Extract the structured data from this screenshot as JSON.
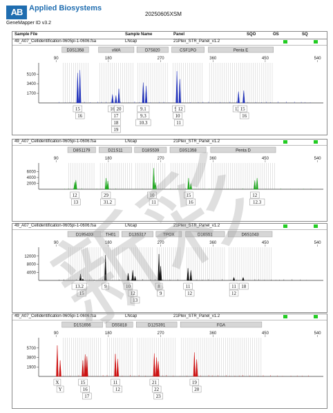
{
  "header": {
    "brand": "Applied Biosystems",
    "software": "GeneMapper ID v3.2",
    "title": "20250605XSM",
    "columns": [
      "Sample File",
      "Sample Name",
      "Panel",
      "SQO",
      "OS",
      "SQ"
    ],
    "status_color": "#22cc22"
  },
  "watermark_text": "新彩",
  "chart_data": [
    {
      "type": "line",
      "sample_file": "49_A07_Cellidentification-0605pi-1-0606.fsa",
      "sample_name": "LNcap",
      "panel": "21Plex_STR_Panel_v1.2",
      "color": "#2233bb",
      "x_range": [
        60,
        550
      ],
      "x_ticks": [
        90,
        180,
        270,
        360,
        450,
        540
      ],
      "ylim": [
        0,
        6600
      ],
      "y_ticks": [
        1700,
        3400,
        5100
      ],
      "y_tick_labels": [
        "1700",
        "3400",
        "5100"
      ],
      "markers": [
        {
          "name": "D3S1358",
          "start": 100,
          "end": 146
        },
        {
          "name": "vWA",
          "start": 163,
          "end": 224
        },
        {
          "name": "D7S820",
          "start": 229,
          "end": 283
        },
        {
          "name": "CSF1PO",
          "start": 289,
          "end": 345
        },
        {
          "name": "Penta E",
          "start": 352,
          "end": 464
        }
      ],
      "peaks": [
        {
          "x": 127,
          "h": 5300
        },
        {
          "x": 131,
          "h": 5800
        },
        {
          "x": 187,
          "h": 1500
        },
        {
          "x": 193,
          "h": 1300
        },
        {
          "x": 198,
          "h": 2500
        },
        {
          "x": 240,
          "h": 3600
        },
        {
          "x": 245,
          "h": 3000
        },
        {
          "x": 298,
          "h": 5600
        },
        {
          "x": 303,
          "h": 4200
        },
        {
          "x": 404,
          "h": 2000
        },
        {
          "x": 413,
          "h": 2200
        }
      ],
      "labels": [
        {
          "x": 127,
          "row": 0,
          "text": "15"
        },
        {
          "x": 131,
          "row": 1,
          "text": "16"
        },
        {
          "x": 187,
          "row": 0,
          "text": "16"
        },
        {
          "x": 193,
          "row": 1,
          "text": "17"
        },
        {
          "x": 193,
          "row": 2,
          "text": "18"
        },
        {
          "x": 193,
          "row": 3,
          "text": "19"
        },
        {
          "x": 198,
          "row": 0,
          "text": "20"
        },
        {
          "x": 240,
          "row": 0,
          "text": "9.1"
        },
        {
          "x": 240,
          "row": 1,
          "text": "9.3"
        },
        {
          "x": 240,
          "row": 2,
          "text": "10.3"
        },
        {
          "x": 296,
          "row": 0,
          "text": "9"
        },
        {
          "x": 299,
          "row": 1,
          "text": "10"
        },
        {
          "x": 304,
          "row": 0,
          "text": "12"
        },
        {
          "x": 301,
          "row": 2,
          "text": "11"
        },
        {
          "x": 402,
          "row": 0,
          "text": "12"
        },
        {
          "x": 411,
          "row": 0,
          "text": "15"
        },
        {
          "x": 414,
          "row": 1,
          "text": "16"
        }
      ]
    },
    {
      "type": "line",
      "sample_file": "49_A07_Cellidentification-0605pi-1-0606.fsa",
      "sample_name": "LNcap",
      "panel": "21Plex_STR_Panel_v1.2",
      "color": "#22aa22",
      "x_range": [
        60,
        550
      ],
      "x_ticks": [
        90,
        180,
        270,
        360,
        450,
        540
      ],
      "ylim": [
        0,
        8000
      ],
      "y_ticks": [
        2000,
        4000,
        6000
      ],
      "y_tick_labels": [
        "2000",
        "4000",
        "6000"
      ],
      "markers": [
        {
          "name": "D8S1179",
          "start": 110,
          "end": 158
        },
        {
          "name": "D21S11",
          "start": 164,
          "end": 220
        },
        {
          "name": "D18S539",
          "start": 225,
          "end": 280
        },
        {
          "name": "D3S1358",
          "start": 286,
          "end": 348
        },
        {
          "name": "Penta D",
          "start": 356,
          "end": 468
        }
      ],
      "peaks": [
        {
          "x": 122,
          "h": 2400
        },
        {
          "x": 124,
          "h": 3100
        },
        {
          "x": 176,
          "h": 3800
        },
        {
          "x": 179,
          "h": 2800
        },
        {
          "x": 258,
          "h": 7200
        },
        {
          "x": 261,
          "h": 2300
        },
        {
          "x": 318,
          "h": 3800
        },
        {
          "x": 322,
          "h": 2000
        },
        {
          "x": 432,
          "h": 3000
        },
        {
          "x": 436,
          "h": 3800
        }
      ],
      "labels": [
        {
          "x": 122,
          "row": 0,
          "text": "12"
        },
        {
          "x": 124,
          "row": 1,
          "text": "13"
        },
        {
          "x": 176,
          "row": 0,
          "text": "29"
        },
        {
          "x": 179,
          "row": 1,
          "text": "31.2"
        },
        {
          "x": 255,
          "row": 0,
          "text": "10"
        },
        {
          "x": 258,
          "row": 1,
          "text": "11"
        },
        {
          "x": 318,
          "row": 0,
          "text": "15"
        },
        {
          "x": 322,
          "row": 1,
          "text": "16"
        },
        {
          "x": 432,
          "row": 0,
          "text": "12"
        },
        {
          "x": 436,
          "row": 1,
          "text": "12.3"
        }
      ]
    },
    {
      "type": "line",
      "sample_file": "49_A07_Cellidentification-0605pi-1-0606.fsa",
      "sample_name": "LNcap",
      "panel": "21Plex_STR_Panel_v1.2",
      "color": "#111111",
      "x_range": [
        60,
        550
      ],
      "x_ticks": [
        90,
        180,
        270,
        360,
        450,
        540
      ],
      "ylim": [
        0,
        15000
      ],
      "y_ticks": [
        4000,
        8000,
        12000
      ],
      "y_tick_labels": [
        "4000",
        "8000",
        "12000"
      ],
      "markers": [
        {
          "name": "D19S433",
          "start": 110,
          "end": 168
        },
        {
          "name": "TH01",
          "start": 170,
          "end": 198
        },
        {
          "name": "D13S317",
          "start": 203,
          "end": 257
        },
        {
          "name": "TPOX",
          "start": 262,
          "end": 306
        },
        {
          "name": "D16S51",
          "start": 313,
          "end": 380
        },
        {
          "name": "D6S1043",
          "start": 386,
          "end": 462
        }
      ],
      "peaks": [
        {
          "x": 132,
          "h": 3200
        },
        {
          "x": 136,
          "h": 800
        },
        {
          "x": 175,
          "h": 12500
        },
        {
          "x": 214,
          "h": 3500
        },
        {
          "x": 222,
          "h": 5000
        },
        {
          "x": 226,
          "h": 2000
        },
        {
          "x": 267,
          "h": 13000
        },
        {
          "x": 270,
          "h": 7000
        },
        {
          "x": 317,
          "h": 6000
        },
        {
          "x": 322,
          "h": 5000
        },
        {
          "x": 396,
          "h": 1500
        },
        {
          "x": 412,
          "h": 1500
        }
      ],
      "labels": [
        {
          "x": 130,
          "row": 0,
          "text": "13.2"
        },
        {
          "x": 134,
          "row": 1,
          "text": "15"
        },
        {
          "x": 175,
          "row": 0,
          "text": "9"
        },
        {
          "x": 214,
          "row": 0,
          "text": "10"
        },
        {
          "x": 222,
          "row": 1,
          "text": "12"
        },
        {
          "x": 226,
          "row": 2,
          "text": "13"
        },
        {
          "x": 267,
          "row": 0,
          "text": "8"
        },
        {
          "x": 270,
          "row": 1,
          "text": "9"
        },
        {
          "x": 317,
          "row": 0,
          "text": "11"
        },
        {
          "x": 320,
          "row": 1,
          "text": "12"
        },
        {
          "x": 396,
          "row": 0,
          "text": "11"
        },
        {
          "x": 396,
          "row": 1,
          "text": "12"
        },
        {
          "x": 413,
          "row": 0,
          "text": "18"
        }
      ]
    },
    {
      "type": "line",
      "sample_file": "49_A07_Cellidentification-0605pi-1-0606.fsa",
      "sample_name": "LNcap",
      "panel": "21Plex_STR_Panel_v1.2",
      "color": "#cc1111",
      "x_range": [
        60,
        550
      ],
      "x_ticks": [
        90,
        180,
        270,
        360,
        450,
        540
      ],
      "ylim": [
        0,
        7200
      ],
      "y_ticks": [
        1900,
        3800,
        5700
      ],
      "y_tick_labels": [
        "1900",
        "3800",
        "5700"
      ],
      "markers": [
        {
          "name": "D1S1656",
          "start": 100,
          "end": 170
        },
        {
          "name": "D5S818",
          "start": 176,
          "end": 222
        },
        {
          "name": "D12S391",
          "start": 228,
          "end": 298
        },
        {
          "name": "FGA",
          "start": 304,
          "end": 444
        }
      ],
      "peaks": [
        {
          "x": 92,
          "h": 6200
        },
        {
          "x": 97,
          "h": 3200
        },
        {
          "x": 136,
          "h": 3200
        },
        {
          "x": 140,
          "h": 4400
        },
        {
          "x": 143,
          "h": 4000
        },
        {
          "x": 192,
          "h": 4500
        },
        {
          "x": 196,
          "h": 3500
        },
        {
          "x": 259,
          "h": 4600
        },
        {
          "x": 263,
          "h": 3800
        },
        {
          "x": 266,
          "h": 3000
        },
        {
          "x": 328,
          "h": 4800
        },
        {
          "x": 332,
          "h": 3400
        }
      ],
      "labels": [
        {
          "x": 92,
          "row": 0,
          "text": "X"
        },
        {
          "x": 97,
          "row": 1,
          "text": "Y"
        },
        {
          "x": 136,
          "row": 0,
          "text": "15"
        },
        {
          "x": 140,
          "row": 1,
          "text": "16"
        },
        {
          "x": 143,
          "row": 2,
          "text": "17"
        },
        {
          "x": 192,
          "row": 0,
          "text": "11"
        },
        {
          "x": 196,
          "row": 1,
          "text": "12"
        },
        {
          "x": 259,
          "row": 0,
          "text": "21"
        },
        {
          "x": 263,
          "row": 1,
          "text": "22"
        },
        {
          "x": 266,
          "row": 2,
          "text": "23"
        },
        {
          "x": 328,
          "row": 0,
          "text": "19"
        },
        {
          "x": 332,
          "row": 1,
          "text": "20"
        }
      ]
    }
  ]
}
